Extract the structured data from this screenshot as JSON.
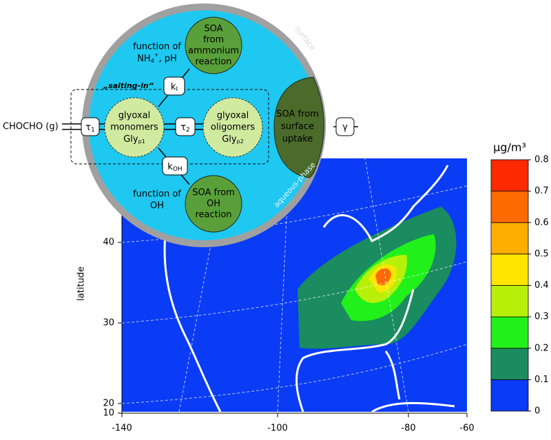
{
  "map": {
    "ylabel": "latitude",
    "xticks": [
      -140,
      -100,
      -80,
      -60
    ],
    "yticks": [
      10,
      20,
      30,
      40
    ],
    "colorbar": {
      "unit": "µg/m³",
      "ticks": [
        0,
        0.1,
        0.2,
        0.3,
        0.4,
        0.5,
        0.6,
        0.7,
        0.8
      ],
      "colors": [
        "#0a3cf5",
        "#1a8c5f",
        "#22f01a",
        "#b8f00a",
        "#ffe600",
        "#ffae00",
        "#ff6a00",
        "#ff2a00"
      ]
    }
  },
  "diagram": {
    "gas": "CHOCHO (g)",
    "tau1": {
      "main": "τ",
      "sub": "1"
    },
    "tau2": {
      "main": "τ",
      "sub": "2"
    },
    "kI": {
      "main": "k",
      "sub": "I"
    },
    "kOH": {
      "main": "k",
      "sub": "OH"
    },
    "gamma": "γ",
    "monomers": {
      "line1": "glyoxal",
      "line2": "monomers",
      "main": "Gly",
      "sub": "p1"
    },
    "oligomers": {
      "line1": "glyoxal",
      "line2": "oligomers",
      "main": "Gly",
      "sub": "p2"
    },
    "salting": "„salting-in“",
    "nh4": {
      "line1": "function of",
      "main": "NH",
      "sub": "4",
      "sup": "+",
      "rest": ", pH"
    },
    "oh_func": {
      "line1": "function of",
      "line2": "OH"
    },
    "soa_ammonium": [
      "SOA",
      "from",
      "ammonium",
      "reaction"
    ],
    "soa_oh": [
      "SOA from",
      "OH",
      "reaction"
    ],
    "soa_surface": [
      "SOA from",
      "surface",
      "uptake"
    ],
    "surface": "surface",
    "aqueous": "aqueous-phase"
  }
}
